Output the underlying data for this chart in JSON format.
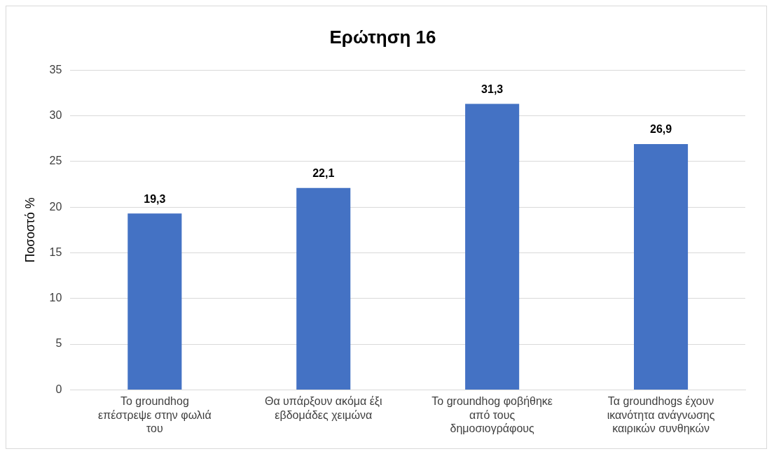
{
  "chart_data": {
    "type": "bar",
    "title": "Ερώτηση 16",
    "ylabel": "Ποσοστό %",
    "categories": [
      "Το groundhog επέστρεψε στην φωλιά του",
      "Θα υπάρξουν ακόμα έξι εβδομάδες χειμώνα",
      "Το groundhog φοβήθηκε από τους δημοσιογράφους",
      "Τα groundhogs έχουν ικανότητα ανάγνωσης καιρικών συνθηκών"
    ],
    "values": [
      19.3,
      22.1,
      31.3,
      26.9
    ],
    "color": "#4472c4",
    "ylim": [
      0,
      35
    ],
    "yticks": [
      0,
      5,
      10,
      15,
      20,
      25,
      30,
      35
    ],
    "grid": "y",
    "legend": false,
    "value_labels": [
      "19,3",
      "22,1",
      "31,3",
      "26,9"
    ]
  }
}
